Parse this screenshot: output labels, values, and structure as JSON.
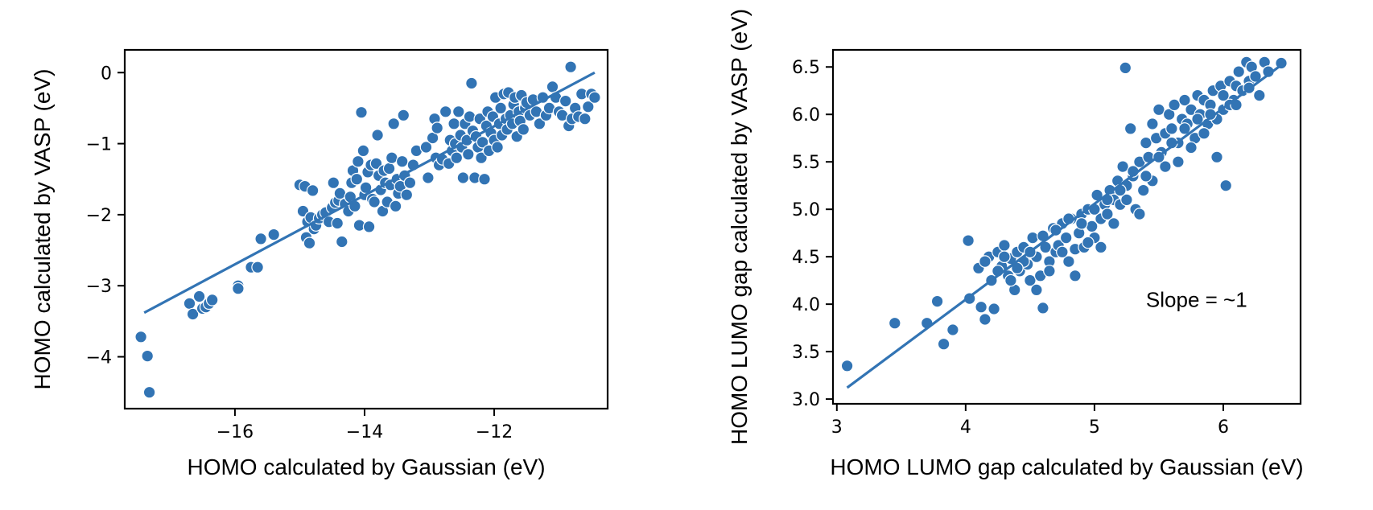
{
  "colors": {
    "marker": "#3274b4",
    "line": "#3274b4",
    "axis": "#000000"
  },
  "chart_data": [
    {
      "type": "scatter",
      "xlabel": "HOMO calculated by Gaussian (eV)",
      "ylabel": "HOMO calculated by VASP (eV)",
      "xlim": [
        -17.7,
        -10.25
      ],
      "ylim": [
        -4.73,
        0.32
      ],
      "xticks": [
        -16,
        -14,
        -12
      ],
      "yticks": [
        0,
        -1,
        -2,
        -3,
        -4
      ],
      "xtick_labels": [
        "−16",
        "−14",
        "−12"
      ],
      "ytick_labels": [
        "0",
        "−1",
        "−2",
        "−3",
        "−4"
      ],
      "grid": false,
      "fit_line": {
        "x": [
          -17.4,
          -10.45
        ],
        "y": [
          -3.38,
          0.0
        ]
      },
      "annotations": [],
      "points": [
        [
          -17.45,
          -3.72
        ],
        [
          -17.35,
          -3.99
        ],
        [
          -17.32,
          -4.5
        ],
        [
          -16.7,
          -3.25
        ],
        [
          -16.65,
          -3.4
        ],
        [
          -16.55,
          -3.15
        ],
        [
          -16.5,
          -3.32
        ],
        [
          -16.45,
          -3.3
        ],
        [
          -16.4,
          -3.25
        ],
        [
          -16.35,
          -3.2
        ],
        [
          -15.95,
          -3.0
        ],
        [
          -15.95,
          -3.04
        ],
        [
          -15.75,
          -2.74
        ],
        [
          -15.65,
          -2.74
        ],
        [
          -15.6,
          -2.34
        ],
        [
          -15.4,
          -2.28
        ],
        [
          -15.0,
          -1.58
        ],
        [
          -14.95,
          -1.95
        ],
        [
          -14.92,
          -1.6
        ],
        [
          -14.9,
          -2.32
        ],
        [
          -14.88,
          -2.1
        ],
        [
          -14.85,
          -2.4
        ],
        [
          -14.83,
          -2.04
        ],
        [
          -14.8,
          -1.66
        ],
        [
          -14.78,
          -2.2
        ],
        [
          -14.75,
          -2.15
        ],
        [
          -14.7,
          -2.05
        ],
        [
          -14.65,
          -2.0
        ],
        [
          -14.6,
          -1.97
        ],
        [
          -14.55,
          -2.1
        ],
        [
          -14.5,
          -1.9
        ],
        [
          -14.48,
          -1.55
        ],
        [
          -14.45,
          -1.83
        ],
        [
          -14.42,
          -2.12
        ],
        [
          -14.4,
          -1.8
        ],
        [
          -14.38,
          -1.7
        ],
        [
          -14.35,
          -2.38
        ],
        [
          -14.3,
          -1.85
        ],
        [
          -14.25,
          -1.95
        ],
        [
          -14.22,
          -1.75
        ],
        [
          -14.2,
          -1.55
        ],
        [
          -14.18,
          -1.38
        ],
        [
          -14.15,
          -1.88
        ],
        [
          -14.12,
          -1.5
        ],
        [
          -14.1,
          -1.25
        ],
        [
          -14.08,
          -2.15
        ],
        [
          -14.05,
          -0.56
        ],
        [
          -14.02,
          -1.1
        ],
        [
          -14.0,
          -1.72
        ],
        [
          -13.98,
          -1.62
        ],
        [
          -13.95,
          -1.4
        ],
        [
          -13.93,
          -2.17
        ],
        [
          -13.9,
          -1.3
        ],
        [
          -13.88,
          -1.78
        ],
        [
          -13.85,
          -1.82
        ],
        [
          -13.82,
          -1.28
        ],
        [
          -13.8,
          -0.88
        ],
        [
          -13.78,
          -1.45
        ],
        [
          -13.75,
          -1.65
        ],
        [
          -13.72,
          -1.95
        ],
        [
          -13.7,
          -1.38
        ],
        [
          -13.68,
          -1.55
        ],
        [
          -13.65,
          -1.82
        ],
        [
          -13.62,
          -1.35
        ],
        [
          -13.6,
          -1.58
        ],
        [
          -13.58,
          -1.2
        ],
        [
          -13.55,
          -0.72
        ],
        [
          -13.52,
          -1.88
        ],
        [
          -13.5,
          -1.5
        ],
        [
          -13.48,
          -1.7
        ],
        [
          -13.45,
          -1.6
        ],
        [
          -13.42,
          -1.25
        ],
        [
          -13.4,
          -0.6
        ],
        [
          -13.38,
          -1.45
        ],
        [
          -13.35,
          -1.72
        ],
        [
          -13.3,
          -1.55
        ],
        [
          -13.25,
          -1.3
        ],
        [
          -13.2,
          -1.1
        ],
        [
          -13.05,
          -1.05
        ],
        [
          -13.02,
          -1.48
        ],
        [
          -12.95,
          -0.92
        ],
        [
          -12.92,
          -0.65
        ],
        [
          -12.9,
          -1.2
        ],
        [
          -12.88,
          -0.78
        ],
        [
          -12.85,
          -1.3
        ],
        [
          -12.8,
          -1.22
        ],
        [
          -12.75,
          -0.55
        ],
        [
          -12.7,
          -1.28
        ],
        [
          -12.68,
          -0.95
        ],
        [
          -12.65,
          -1.1
        ],
        [
          -12.62,
          -0.72
        ],
        [
          -12.6,
          -1.0
        ],
        [
          -12.58,
          -1.2
        ],
        [
          -12.55,
          -0.55
        ],
        [
          -12.52,
          -0.88
        ],
        [
          -12.5,
          -1.05
        ],
        [
          -12.48,
          -1.48
        ],
        [
          -12.45,
          -0.72
        ],
        [
          -12.42,
          -0.95
        ],
        [
          -12.4,
          -1.15
        ],
        [
          -12.38,
          -0.62
        ],
        [
          -12.35,
          -0.15
        ],
        [
          -12.33,
          -0.82
        ],
        [
          -12.3,
          -1.48
        ],
        [
          -12.28,
          -0.9
        ],
        [
          -12.25,
          -1.05
        ],
        [
          -12.22,
          -0.65
        ],
        [
          -12.2,
          -1.2
        ],
        [
          -12.18,
          -0.98
        ],
        [
          -12.15,
          -1.5
        ],
        [
          -12.12,
          -0.75
        ],
        [
          -12.1,
          -0.55
        ],
        [
          -12.08,
          -1.1
        ],
        [
          -12.05,
          -0.85
        ],
        [
          -12.02,
          -0.62
        ],
        [
          -12.0,
          -0.95
        ],
        [
          -11.98,
          -0.35
        ],
        [
          -11.95,
          -1.05
        ],
        [
          -11.92,
          -0.72
        ],
        [
          -11.9,
          -0.5
        ],
        [
          -11.88,
          -0.88
        ],
        [
          -11.85,
          -0.3
        ],
        [
          -11.82,
          -0.65
        ],
        [
          -11.8,
          -0.8
        ],
        [
          -11.78,
          -0.28
        ],
        [
          -11.75,
          -0.6
        ],
        [
          -11.72,
          -0.72
        ],
        [
          -11.7,
          -0.45
        ],
        [
          -11.68,
          -0.35
        ],
        [
          -11.65,
          -0.9
        ],
        [
          -11.62,
          -0.55
        ],
        [
          -11.6,
          -0.68
        ],
        [
          -11.58,
          -0.32
        ],
        [
          -11.55,
          -0.8
        ],
        [
          -11.52,
          -0.5
        ],
        [
          -11.5,
          -0.42
        ],
        [
          -11.45,
          -0.6
        ],
        [
          -11.4,
          -0.38
        ],
        [
          -11.35,
          -0.55
        ],
        [
          -11.3,
          -0.72
        ],
        [
          -11.25,
          -0.35
        ],
        [
          -11.2,
          -0.6
        ],
        [
          -11.15,
          -0.5
        ],
        [
          -11.1,
          -0.2
        ],
        [
          -11.05,
          -0.35
        ],
        [
          -11.0,
          -0.55
        ],
        [
          -10.95,
          -0.6
        ],
        [
          -10.9,
          -0.4
        ],
        [
          -10.85,
          -0.75
        ],
        [
          -10.82,
          0.08
        ],
        [
          -10.8,
          -0.65
        ],
        [
          -10.75,
          -0.5
        ],
        [
          -10.7,
          -0.62
        ],
        [
          -10.65,
          -0.3
        ],
        [
          -10.6,
          -0.65
        ],
        [
          -10.55,
          -0.48
        ],
        [
          -10.5,
          -0.3
        ],
        [
          -10.45,
          -0.35
        ]
      ]
    },
    {
      "type": "scatter",
      "xlabel": "HOMO LUMO gap calculated by Gaussian (eV)",
      "ylabel": "HOMO LUMO gap calculated by VASP (eV)",
      "xlim": [
        2.97,
        6.6
      ],
      "ylim": [
        2.95,
        6.68
      ],
      "xticks": [
        3,
        4,
        5,
        6
      ],
      "yticks": [
        3.0,
        3.5,
        4.0,
        4.5,
        5.0,
        5.5,
        6.0,
        6.5
      ],
      "xtick_labels": [
        "3",
        "4",
        "5",
        "6"
      ],
      "ytick_labels": [
        "3.0",
        "3.5",
        "4.0",
        "4.5",
        "5.0",
        "5.5",
        "6.0",
        "6.5"
      ],
      "grid": false,
      "fit_line": {
        "x": [
          3.08,
          6.45
        ],
        "y": [
          3.12,
          6.52
        ]
      },
      "annotations": [
        {
          "text": "Slope = ~1",
          "x": 5.4,
          "y": 3.97
        }
      ],
      "points": [
        [
          3.08,
          3.35
        ],
        [
          3.45,
          3.8
        ],
        [
          3.7,
          3.8
        ],
        [
          3.78,
          4.03
        ],
        [
          3.83,
          3.58
        ],
        [
          3.9,
          3.73
        ],
        [
          4.03,
          4.06
        ],
        [
          4.02,
          4.67
        ],
        [
          4.1,
          4.38
        ],
        [
          4.12,
          3.97
        ],
        [
          4.15,
          3.84
        ],
        [
          4.18,
          4.5
        ],
        [
          4.2,
          4.25
        ],
        [
          4.22,
          3.95
        ],
        [
          4.25,
          4.55
        ],
        [
          4.28,
          4.4
        ],
        [
          4.3,
          4.62
        ],
        [
          4.33,
          4.3
        ],
        [
          4.35,
          4.48
        ],
        [
          4.38,
          4.15
        ],
        [
          4.4,
          4.55
        ],
        [
          4.42,
          4.35
        ],
        [
          4.45,
          4.6
        ],
        [
          4.48,
          4.42
        ],
        [
          4.5,
          4.25
        ],
        [
          4.52,
          4.7
        ],
        [
          4.55,
          4.5
        ],
        [
          4.58,
          4.3
        ],
        [
          4.6,
          3.96
        ],
        [
          4.62,
          4.6
        ],
        [
          4.65,
          4.45
        ],
        [
          4.68,
          4.8
        ],
        [
          4.7,
          4.55
        ],
        [
          4.72,
          4.62
        ],
        [
          4.75,
          4.85
        ],
        [
          4.78,
          4.7
        ],
        [
          4.8,
          4.45
        ],
        [
          4.82,
          4.9
        ],
        [
          4.85,
          4.58
        ],
        [
          4.88,
          4.75
        ],
        [
          4.9,
          4.95
        ],
        [
          4.92,
          4.6
        ],
        [
          4.95,
          5.0
        ],
        [
          4.98,
          4.82
        ],
        [
          5.0,
          4.7
        ],
        [
          5.02,
          5.15
        ],
        [
          5.05,
          4.9
        ],
        [
          5.08,
          5.05
        ],
        [
          5.1,
          4.95
        ],
        [
          5.12,
          5.2
        ],
        [
          5.15,
          5.1
        ],
        [
          5.18,
          5.3
        ],
        [
          5.2,
          5.05
        ],
        [
          5.22,
          5.45
        ],
        [
          5.25,
          5.25
        ],
        [
          5.24,
          6.49
        ],
        [
          5.28,
          5.85
        ],
        [
          5.3,
          5.35
        ],
        [
          5.32,
          5.0
        ],
        [
          5.35,
          5.5
        ],
        [
          5.38,
          5.2
        ],
        [
          5.4,
          5.7
        ],
        [
          5.42,
          5.55
        ],
        [
          5.45,
          5.9
        ],
        [
          5.48,
          5.75
        ],
        [
          5.5,
          6.05
        ],
        [
          5.52,
          5.6
        ],
        [
          5.55,
          5.8
        ],
        [
          5.58,
          6.0
        ],
        [
          5.6,
          5.85
        ],
        [
          5.62,
          6.1
        ],
        [
          5.65,
          5.7
        ],
        [
          5.68,
          5.95
        ],
        [
          5.7,
          6.15
        ],
        [
          5.72,
          5.9
        ],
        [
          5.75,
          6.05
        ],
        [
          5.78,
          5.75
        ],
        [
          5.8,
          6.2
        ],
        [
          5.82,
          6.0
        ],
        [
          5.85,
          6.15
        ],
        [
          5.88,
          5.9
        ],
        [
          5.9,
          6.1
        ],
        [
          5.92,
          6.25
        ],
        [
          5.95,
          5.55
        ],
        [
          5.98,
          6.3
        ],
        [
          6.0,
          6.05
        ],
        [
          6.02,
          5.25
        ],
        [
          6.05,
          6.35
        ],
        [
          6.08,
          6.15
        ],
        [
          6.1,
          6.3
        ],
        [
          6.12,
          6.45
        ],
        [
          6.15,
          6.25
        ],
        [
          6.18,
          6.55
        ],
        [
          6.2,
          6.35
        ],
        [
          6.22,
          6.5
        ],
        [
          6.25,
          6.4
        ],
        [
          6.28,
          6.2
        ],
        [
          6.32,
          6.55
        ],
        [
          6.35,
          6.45
        ],
        [
          6.45,
          6.54
        ],
        [
          4.15,
          4.45
        ],
        [
          4.25,
          4.35
        ],
        [
          4.35,
          4.25
        ],
        [
          4.45,
          4.45
        ],
        [
          4.55,
          4.15
        ],
        [
          4.65,
          4.35
        ],
        [
          4.75,
          4.55
        ],
        [
          4.85,
          4.3
        ],
        [
          4.95,
          4.65
        ],
        [
          5.05,
          4.6
        ],
        [
          5.15,
          4.85
        ],
        [
          5.25,
          5.1
        ],
        [
          5.35,
          4.95
        ],
        [
          5.45,
          5.3
        ],
        [
          5.55,
          5.45
        ],
        [
          5.65,
          5.5
        ],
        [
          5.75,
          5.65
        ],
        [
          5.85,
          5.8
        ],
        [
          5.95,
          5.95
        ],
        [
          6.05,
          6.1
        ],
        [
          4.3,
          4.5
        ],
        [
          4.4,
          4.38
        ],
        [
          4.5,
          4.55
        ],
        [
          4.6,
          4.72
        ],
        [
          4.7,
          4.78
        ],
        [
          4.8,
          4.9
        ],
        [
          4.9,
          4.85
        ],
        [
          5.0,
          5.0
        ],
        [
          5.1,
          5.1
        ],
        [
          5.2,
          5.2
        ],
        [
          5.3,
          5.4
        ],
        [
          5.4,
          5.35
        ],
        [
          5.5,
          5.55
        ],
        [
          5.6,
          5.7
        ],
        [
          5.7,
          5.85
        ],
        [
          5.8,
          5.95
        ],
        [
          5.9,
          6.0
        ],
        [
          6.0,
          6.2
        ],
        [
          6.1,
          6.1
        ],
        [
          6.2,
          6.28
        ]
      ]
    }
  ]
}
